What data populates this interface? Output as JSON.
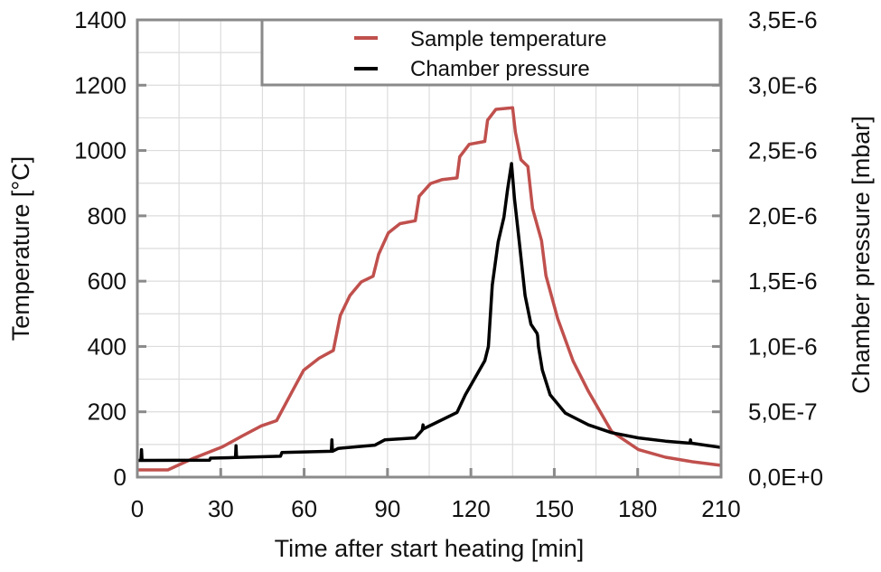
{
  "chart_data": {
    "type": "line",
    "title": "",
    "xlabel": "Time after start heating [min]",
    "ylabel": "Temperature [°C]",
    "y2label": "Chamber pressure [mbar]",
    "xlim": [
      0,
      210
    ],
    "ylim": [
      0,
      1400
    ],
    "y2lim": [
      0,
      3.5e-06
    ],
    "xticks": [
      "0",
      "30",
      "60",
      "90",
      "120",
      "150",
      "180",
      "210"
    ],
    "yticks": [
      "0",
      "200",
      "400",
      "600",
      "800",
      "1000",
      "1200",
      "1400"
    ],
    "y2ticks": [
      "0,0E+0",
      "5,0E-7",
      "1,0E-6",
      "1,5E-6",
      "2,0E-6",
      "2,5E-6",
      "3,0E-6",
      "3,5E-6"
    ],
    "grid": true,
    "legend": "top-right",
    "colors": {
      "temperature": "#c0504d",
      "pressure": "#000000",
      "frame": "#8a8a8a",
      "grid": "#dcdcdc"
    },
    "series": [
      {
        "name": "Sample temperature",
        "axis": "left",
        "x": [
          0,
          11,
          19.7,
          30.7,
          37.7,
          44.6,
          50.1,
          55.7,
          59.8,
          65.4,
          70.5,
          73,
          76.5,
          80.6,
          84.8,
          86.8,
          90.3,
          94.5,
          100,
          101.4,
          105.5,
          109.7,
          115,
          116,
          119.4,
          125,
          126,
          129,
          135,
          136,
          138,
          140.5,
          142.2,
          145.4,
          147,
          151.2,
          156.8,
          162.3,
          170.6,
          180.3,
          190,
          199.7,
          210
        ],
        "y": [
          22,
          22,
          56,
          93,
          126,
          157,
          173,
          262,
          327,
          364,
          388,
          495,
          556,
          598,
          615,
          682,
          748,
          776,
          785,
          860,
          899,
          911,
          916,
          981,
          1019,
          1028,
          1093,
          1126,
          1131,
          1056,
          972,
          951,
          822,
          724,
          617,
          486,
          355,
          262,
          140,
          84,
          61,
          47,
          36
        ]
      },
      {
        "name": "Chamber pressure",
        "axis": "right",
        "x": [
          0,
          1.3,
          1.5,
          1.7,
          26,
          26.3,
          35.3,
          35.5,
          35.7,
          51.5,
          52,
          69.8,
          70,
          70.2,
          72.3,
          85.5,
          89,
          100,
          102.5,
          102.8,
          103,
          115,
          118,
          125,
          126.3,
          127.7,
          129.8,
          131.9,
          133.2,
          134.6,
          135.7,
          137.4,
          139.5,
          141.6,
          143.8,
          144,
          144.3,
          145.7,
          148.5,
          154,
          162.3,
          170.6,
          180.3,
          190,
          198.8,
          199,
          199.2,
          210
        ],
        "y": [
          1.28e-07,
          1.28e-07,
          2.1e-07,
          1.28e-07,
          1.3e-07,
          1.45e-07,
          1.5e-07,
          2.4e-07,
          1.5e-07,
          1.6e-07,
          1.88e-07,
          1.98e-07,
          2.85e-07,
          1.98e-07,
          2.2e-07,
          2.45e-07,
          2.85e-07,
          3e-07,
          3.6e-07,
          4e-07,
          3.7e-07,
          4.95e-07,
          6.3e-07,
          8.9e-07,
          1e-06,
          1.47e-06,
          1.8e-06,
          1.99e-06,
          2.2e-06,
          2.4e-06,
          2.13e-06,
          1.8e-06,
          1.39e-06,
          1.17e-06,
          1.1e-06,
          1.08e-06,
          1e-06,
          8.2e-07,
          6.3e-07,
          4.9e-07,
          4e-07,
          3.4e-07,
          3e-07,
          2.75e-07,
          2.6e-07,
          2.85e-07,
          2.6e-07,
          2.27e-07
        ]
      }
    ]
  }
}
